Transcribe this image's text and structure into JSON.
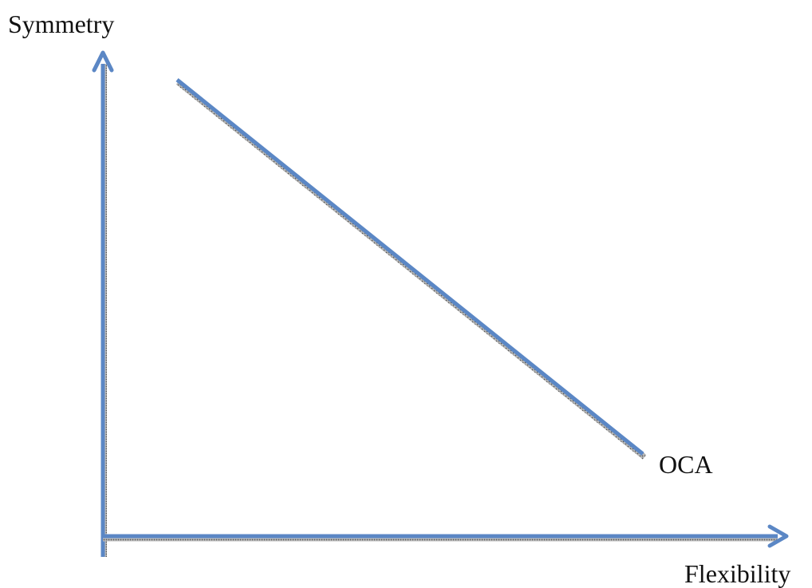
{
  "diagram": {
    "y_axis_label": "Symmetry",
    "x_axis_label": "Flexibility",
    "line_label": "OCA",
    "colors": {
      "stroke": "#5B87C5",
      "shadow": "#7a7a7a",
      "text": "#111111",
      "background": "#ffffff"
    }
  }
}
